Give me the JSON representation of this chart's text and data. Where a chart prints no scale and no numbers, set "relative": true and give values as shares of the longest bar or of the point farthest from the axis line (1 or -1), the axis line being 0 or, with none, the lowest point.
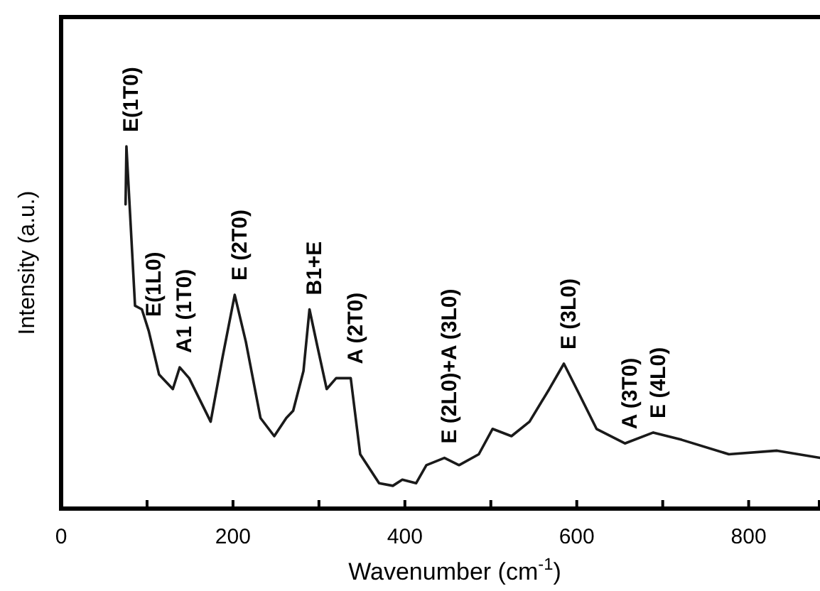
{
  "chart_data": {
    "type": "line",
    "xlabel": "Wavenumber (cm$^{-1}$)",
    "ylabel": "Intensity (a.u.)",
    "relative": true,
    "xlim": [
      0,
      883
    ],
    "xticks": [
      0,
      {
        "value": 100,
        "label": null
      },
      200,
      {
        "value": 300,
        "label": null
      },
      400,
      {
        "value": 500,
        "label": null
      },
      600,
      {
        "value": 700,
        "label": null
      },
      800
    ],
    "grid": false,
    "series": [
      {
        "color": "#1a1a1a",
        "x": [
          75,
          76,
          81,
          86,
          94,
          102,
          114,
          130,
          138,
          149,
          174,
          188,
          202,
          215,
          232,
          248,
          262,
          270,
          282,
          289,
          298,
          309,
          320,
          337,
          348,
          370,
          386,
          397,
          413,
          425,
          446,
          463,
          486,
          502,
          524,
          545,
          568,
          585,
          602,
          623,
          656,
          689,
          722,
          777,
          833,
          883
        ],
        "values": [
          0.84,
          1.0,
          0.78,
          0.56,
          0.55,
          0.49,
          0.37,
          0.33,
          0.39,
          0.36,
          0.24,
          0.42,
          0.59,
          0.46,
          0.25,
          0.2,
          0.25,
          0.27,
          0.38,
          0.55,
          0.45,
          0.33,
          0.36,
          0.36,
          0.15,
          0.07,
          0.063,
          0.08,
          0.07,
          0.12,
          0.14,
          0.12,
          0.15,
          0.22,
          0.2,
          0.24,
          0.33,
          0.4,
          0.32,
          0.22,
          0.18,
          0.21,
          0.19,
          0.15,
          0.16,
          0.14
        ]
      }
    ],
    "annotations": [
      {
        "text": "E(1T0)",
        "x": 76,
        "y": 1.0
      },
      {
        "text": "E(1L0)",
        "x": 102,
        "y": 0.49
      },
      {
        "text": "A1 (1T0)",
        "x": 138,
        "y": 0.39
      },
      {
        "text": "E (2T0)",
        "x": 202,
        "y": 0.59
      },
      {
        "text": "B1+E",
        "x": 289,
        "y": 0.55
      },
      {
        "text": "A (2T0)",
        "x": 337,
        "y": 0.36
      },
      {
        "text": "E (2L0)+A (3L0)",
        "x": 446,
        "y": 0.14
      },
      {
        "text": "E (3L0)",
        "x": 585,
        "y": 0.4
      },
      {
        "text": "A (3T0)",
        "x": 656,
        "y": 0.18
      },
      {
        "text": "E (4L0)",
        "x": 689,
        "y": 0.21
      }
    ]
  }
}
